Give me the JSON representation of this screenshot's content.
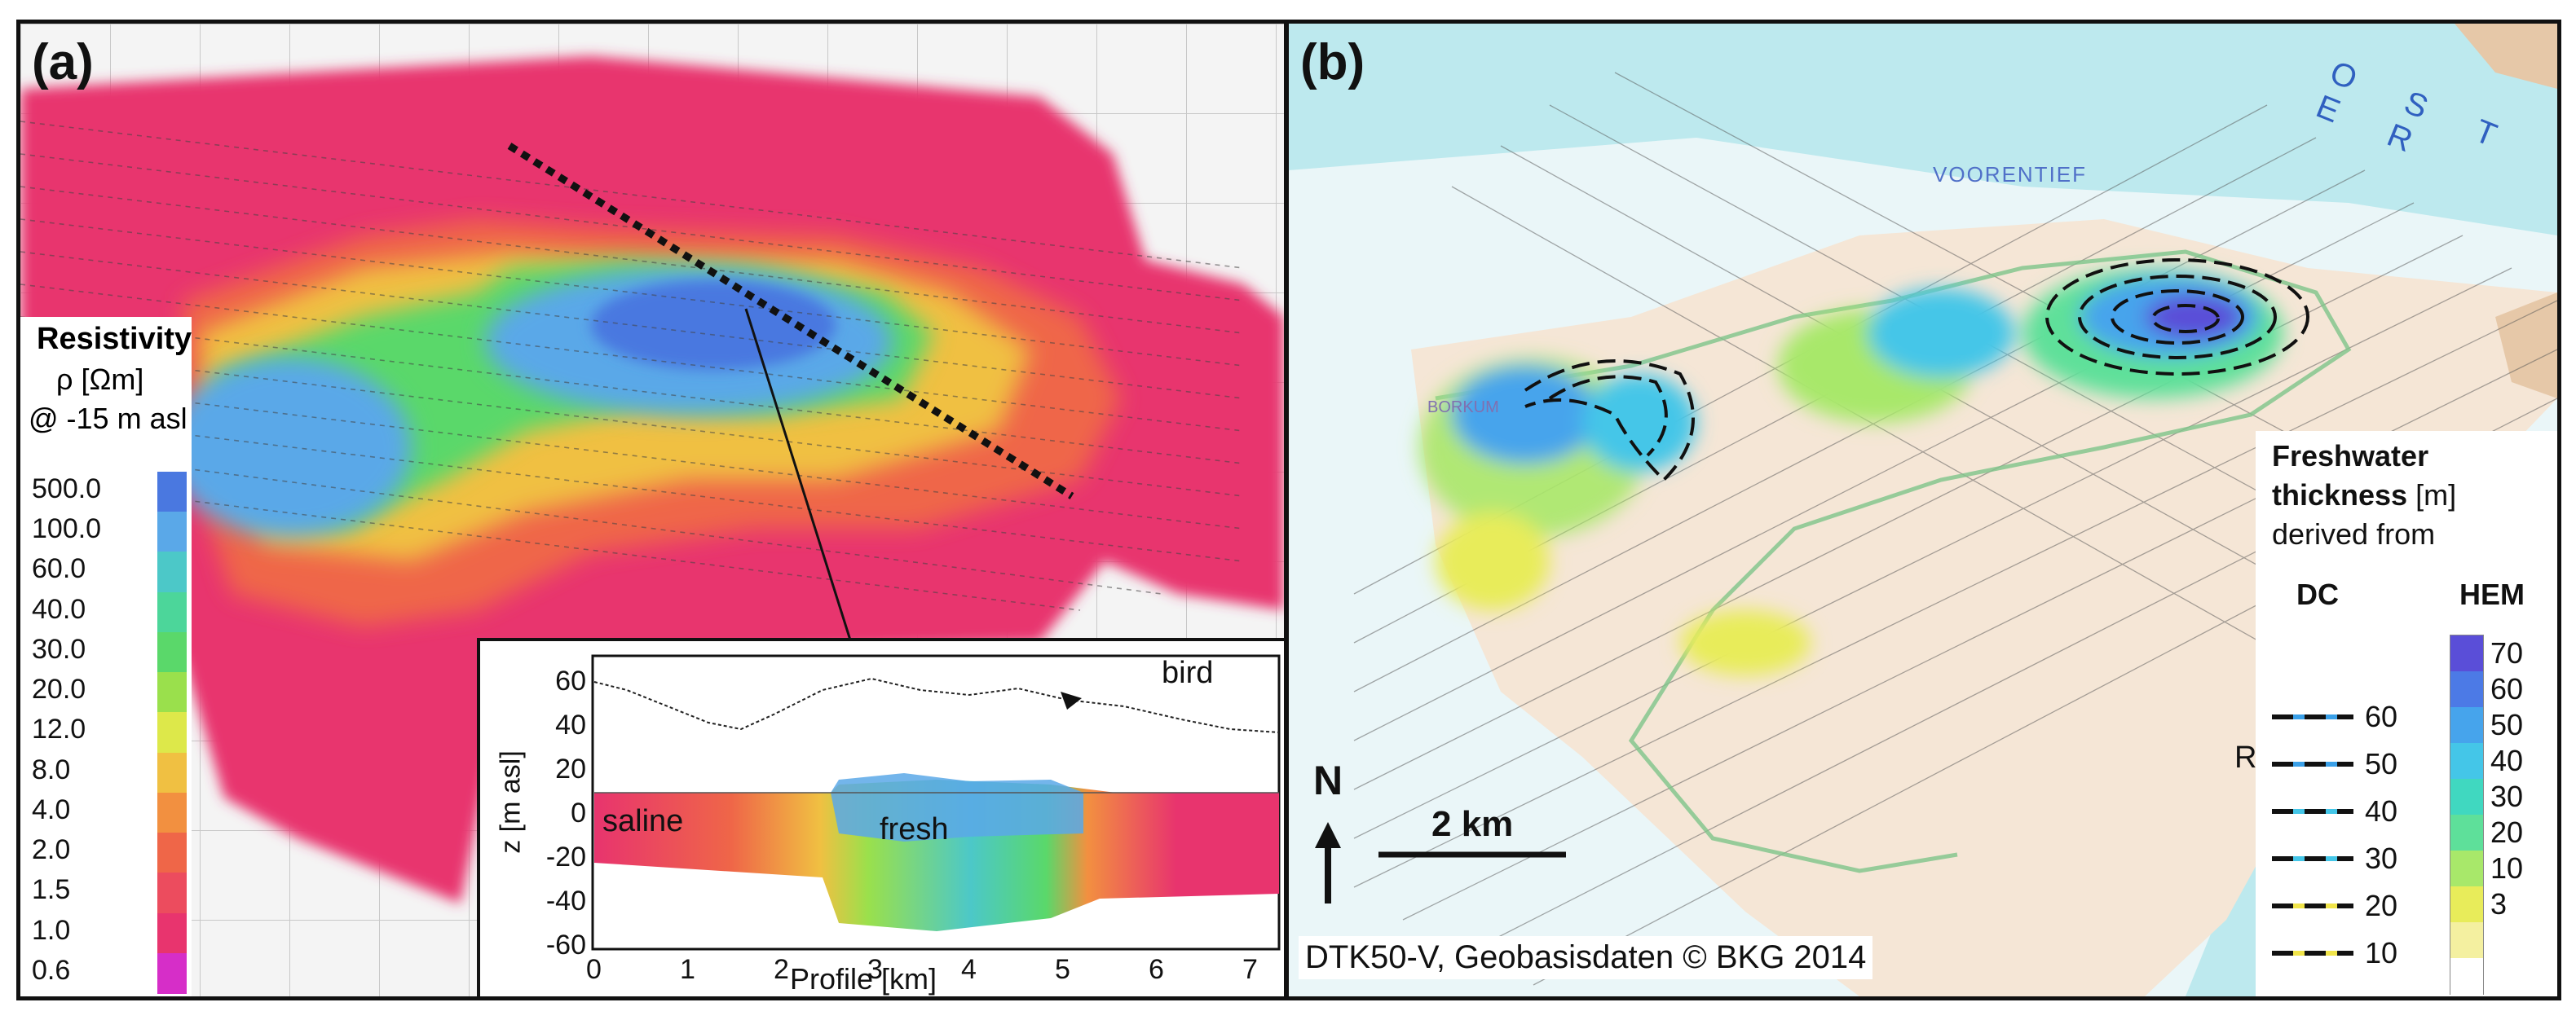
{
  "panel_a": {
    "label": "(a)",
    "legend": {
      "title": "Resistivity",
      "unit": "ρ [Ωm]",
      "depth": "@ -15 m asl",
      "ticks": [
        "500.0",
        "100.0",
        "60.0",
        "40.0",
        "30.0",
        "20.0",
        "12.0",
        "8.0",
        "4.0",
        "2.0",
        "1.5",
        "1.0",
        "0.6"
      ],
      "colors": [
        "#4a78e0",
        "#5aa8e8",
        "#4cc8c8",
        "#4cd69a",
        "#5ad86a",
        "#9ae04c",
        "#dde84a",
        "#f0c042",
        "#f29040",
        "#ef6648",
        "#ec4c5e",
        "#e8346e",
        "#d62ec8"
      ]
    },
    "inset": {
      "y_label": "z [m asl]",
      "x_label": "Profile [km]",
      "y_ticks": [
        "60",
        "40",
        "20",
        "0",
        "-20",
        "-40",
        "-60"
      ],
      "x_ticks": [
        "0",
        "1",
        "2",
        "3",
        "4",
        "5",
        "6",
        "7"
      ],
      "annotations": {
        "bird": "bird",
        "saline": "saline",
        "fresh": "fresh"
      }
    }
  },
  "panel_b": {
    "label": "(b)",
    "legend": {
      "title_bold": "Freshwater",
      "title_bold2": "thickness",
      "title_unit": "[m]",
      "title_sub": "derived from",
      "dc_header": "DC",
      "hem_header": "HEM",
      "dc_ticks": [
        "60",
        "50",
        "40",
        "30",
        "20",
        "10"
      ],
      "hem_ticks": [
        "70",
        "60",
        "50",
        "40",
        "30",
        "20",
        "10",
        "3"
      ],
      "hem_colors": [
        "#5a4ed8",
        "#4c7ae6",
        "#46a4ec",
        "#44c6e8",
        "#40d8c0",
        "#5ee09a",
        "#a8e86a",
        "#e8ec5a",
        "#f4f0a0",
        "#ffffff"
      ]
    },
    "north": "N",
    "scale": "2 km",
    "credit": "DTK50-V, Geobasisdaten © BKG 2014",
    "map_text": {
      "island_name": "BORKUM",
      "water_name": "VOORENTIEF",
      "sea_name": "O S T E R",
      "r_label": "R"
    }
  }
}
